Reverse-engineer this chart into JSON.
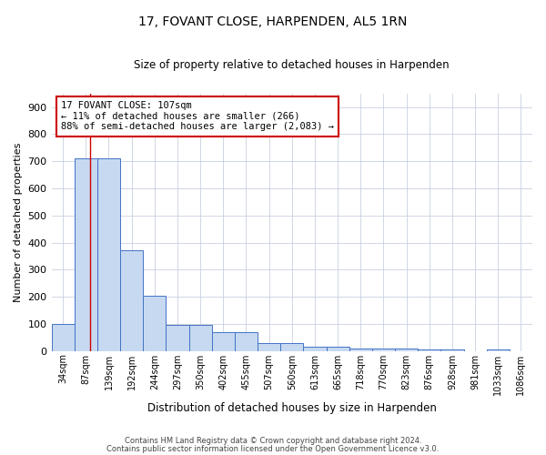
{
  "title": "17, FOVANT CLOSE, HARPENDEN, AL5 1RN",
  "subtitle": "Size of property relative to detached houses in Harpenden",
  "xlabel": "Distribution of detached houses by size in Harpenden",
  "ylabel": "Number of detached properties",
  "bar_labels": [
    "34sqm",
    "87sqm",
    "139sqm",
    "192sqm",
    "244sqm",
    "297sqm",
    "350sqm",
    "402sqm",
    "455sqm",
    "507sqm",
    "560sqm",
    "613sqm",
    "665sqm",
    "718sqm",
    "770sqm",
    "823sqm",
    "876sqm",
    "928sqm",
    "981sqm",
    "1033sqm",
    "1086sqm"
  ],
  "bar_values": [
    100,
    710,
    710,
    370,
    205,
    95,
    95,
    70,
    70,
    28,
    30,
    16,
    17,
    8,
    8,
    8,
    5,
    5,
    0,
    5,
    0
  ],
  "bar_color": "#c6d9f1",
  "bar_edgecolor": "#4472c4",
  "grid_color": "#c8d0e0",
  "ylim": [
    0,
    950
  ],
  "yticks": [
    0,
    100,
    200,
    300,
    400,
    500,
    600,
    700,
    800,
    900
  ],
  "annotation_line1": "17 FOVANT CLOSE: 107sqm",
  "annotation_line2": "← 11% of detached houses are smaller (266)",
  "annotation_line3": "88% of semi-detached houses are larger (2,083) →",
  "annotation_box_color": "#ffffff",
  "annotation_box_edgecolor": "#cc0000",
  "red_line_x": 1.18,
  "footer_line1": "Contains HM Land Registry data © Crown copyright and database right 2024.",
  "footer_line2": "Contains public sector information licensed under the Open Government Licence v3.0."
}
